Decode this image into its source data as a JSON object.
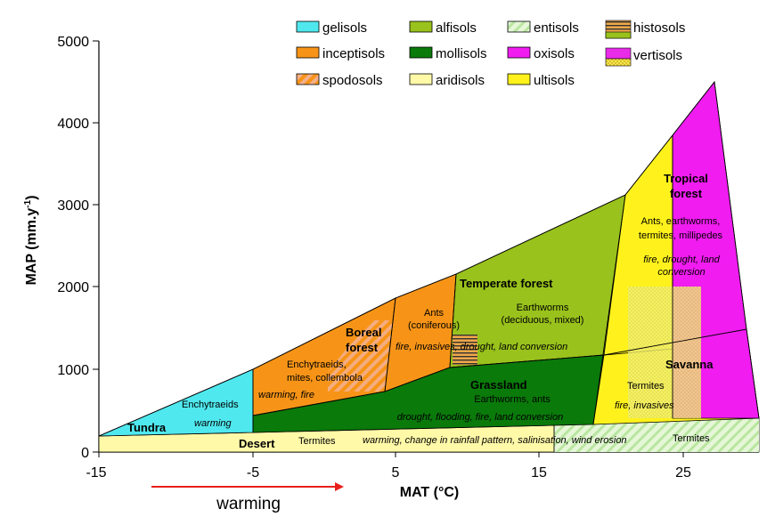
{
  "axes": {
    "y_label": "MAP (mm.y",
    "y_label_sup": "-1",
    "y_label_end": ")",
    "x_label": "MAT (°C)",
    "y_ticks": [
      "0",
      "1000",
      "2000",
      "3000",
      "4000",
      "5000"
    ],
    "x_ticks": [
      "-15",
      "-5",
      "5",
      "15",
      "25"
    ]
  },
  "legend": {
    "items": [
      {
        "label": "gelisols",
        "color": "#4FE8EE",
        "pattern": "solid"
      },
      {
        "label": "alfisols",
        "color": "#99C21C",
        "pattern": "solid"
      },
      {
        "label": "entisols",
        "color": "#DCF5D0",
        "pattern": "stripe"
      },
      {
        "label": "histosols",
        "color": "#E8A030",
        "pattern": "histo"
      },
      {
        "label": "inceptisols",
        "color": "#F79417",
        "pattern": "solid"
      },
      {
        "label": "mollisols",
        "color": "#0A7A0A",
        "pattern": "solid"
      },
      {
        "label": "oxisols",
        "color": "#F01CF0",
        "pattern": "solid"
      },
      {
        "label": "vertisols",
        "color": "#E82CE8",
        "pattern": "verti"
      },
      {
        "label": "spodosols",
        "color": "#F4A07A",
        "pattern": "stripe"
      },
      {
        "label": "aridisols",
        "color": "#FFF9A8",
        "pattern": "solid"
      },
      {
        "label": "ultisols",
        "color": "#FFF21C",
        "pattern": "solid"
      }
    ]
  },
  "biomes": {
    "tundra": "Tundra",
    "desert": "Desert",
    "boreal_1": "Boreal",
    "boreal_2": "forest",
    "temperate": "Temperate forest",
    "grassland": "Grassland",
    "tropical_1": "Tropical",
    "tropical_2": "forest",
    "savanna": "Savanna"
  },
  "fauna": {
    "tundra": "Enchytraeids",
    "boreal_1": "Enchytraeids,",
    "boreal_2": "mites, collembola",
    "coniferous_1": "Ants",
    "coniferous_2": "(coniferous)",
    "temperate_1": "Earthworms",
    "temperate_2": "(deciduous, mixed)",
    "grassland": "Earthworms, ants",
    "desert_1": "Termites",
    "desert_2": "Termites",
    "savanna": "Termites",
    "tropical_1": "Ants, earthworms,",
    "tropical_2": "termites, millipedes"
  },
  "threats": {
    "tundra": "warming",
    "boreal": "warming,  fire",
    "temperate": "fire, invasives, drought, land conversion",
    "grassland": "drought, flooding, fire, land conversion",
    "desert": "warming, change in rainfall pattern, salinisation, wind erosion",
    "savanna": "fire, invasives",
    "tropical_1": "fire, drought, land",
    "tropical_2": "conversion"
  },
  "arrow": {
    "label": "warming",
    "color": "#E8201C"
  }
}
